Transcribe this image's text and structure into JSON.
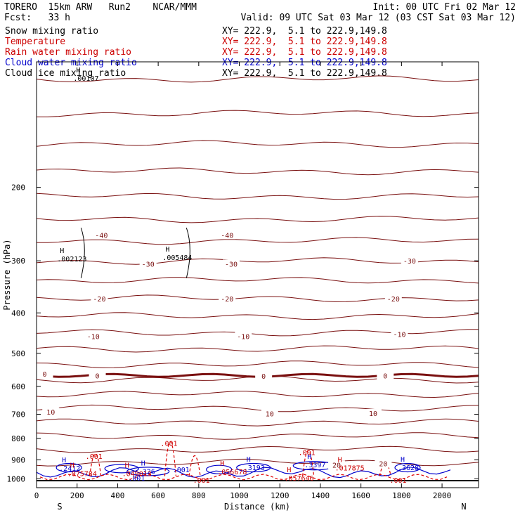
{
  "header": {
    "model": "TORERO  15km ARW   Run2    NCAR/MMM",
    "init": "Init: 00 UTC Fri 02 Mar 12",
    "fcst": "Fcst:   33 h",
    "valid": "Valid: 09 UTC Sat 03 Mar 12 (03 CST Sat 03 Mar 12)"
  },
  "fields": [
    {
      "name": "Snow mixing ratio",
      "xy": "XY= 222.9,  5.1 to 222.9,149.8",
      "color": "#000000"
    },
    {
      "name": "Temperature",
      "xy": "XY= 222.9,  5.1 to 222.9,149.8",
      "color": "#cc0000"
    },
    {
      "name": "Rain water mixing ratio",
      "xy": "XY= 222.9,  5.1 to 222.9,149.8",
      "color": "#cc0000"
    },
    {
      "name": "Cloud water mixing ratio",
      "xy": "XY= 222.9,  5.1 to 222.9,149.8",
      "color": "#0000cc"
    },
    {
      "name": "Cloud ice mixing ratio",
      "xy": "XY= 222.9,  5.1 to 222.9,149.8",
      "color": "#000000"
    }
  ],
  "chart_data": {
    "type": "contour",
    "xlabel": "Distance (km)",
    "ylabel": "Pressure (hPa)",
    "xlim": [
      0,
      2180
    ],
    "ylim": [
      1050,
      100
    ],
    "y_scale": "log",
    "x_ticks": [
      0,
      200,
      400,
      600,
      800,
      1000,
      1200,
      1400,
      1600,
      1800,
      2000
    ],
    "y_ticks": [
      200,
      300,
      400,
      500,
      600,
      700,
      800,
      900,
      1000
    ],
    "x_end_labels": {
      "left": "S",
      "right": "N"
    },
    "temperature_contour_labels": [
      {
        "value": "-40",
        "x": 320,
        "p": 260
      },
      {
        "value": "-40",
        "x": 940,
        "p": 260
      },
      {
        "value": "-30",
        "x": 550,
        "p": 305
      },
      {
        "value": "-30",
        "x": 960,
        "p": 305
      },
      {
        "value": "-30",
        "x": 1840,
        "p": 300
      },
      {
        "value": "-20",
        "x": 310,
        "p": 370
      },
      {
        "value": "-20",
        "x": 940,
        "p": 370
      },
      {
        "value": "-20",
        "x": 1760,
        "p": 370
      },
      {
        "value": "-10",
        "x": 280,
        "p": 455
      },
      {
        "value": "-10",
        "x": 1020,
        "p": 455
      },
      {
        "value": "-10",
        "x": 1790,
        "p": 450
      },
      {
        "value": "0",
        "x": 40,
        "p": 560
      },
      {
        "value": "0",
        "x": 300,
        "p": 565
      },
      {
        "value": "0",
        "x": 1120,
        "p": 567
      },
      {
        "value": "0",
        "x": 1720,
        "p": 566
      },
      {
        "value": "10",
        "x": 70,
        "p": 690
      },
      {
        "value": "10",
        "x": 1150,
        "p": 697
      },
      {
        "value": "10",
        "x": 1660,
        "p": 696
      },
      {
        "value": "20",
        "x": 1480,
        "p": 926
      },
      {
        "value": "20",
        "x": 1710,
        "p": 918
      }
    ],
    "maxima_labels": [
      {
        "field": "snow",
        "value": ".002123",
        "x": 150,
        "p": 295
      },
      {
        "field": "snow",
        "value": ".005484",
        "x": 670,
        "p": 293
      },
      {
        "field": "cloud_ice",
        "value": ".00107",
        "x": 230,
        "p": 109
      },
      {
        "field": "cloud_water",
        "value": ".2412",
        "x": 160,
        "p": 939
      },
      {
        "field": "cloud_water",
        "value": ".326",
        "x": 550,
        "p": 955
      },
      {
        "field": "cloud_water",
        "value": ".3193",
        "x": 1070,
        "p": 935
      },
      {
        "field": "cloud_water",
        "value": ".3397",
        "x": 1370,
        "p": 921
      },
      {
        "field": "cloud_water",
        "value": ".3628",
        "x": 1830,
        "p": 935
      },
      {
        "field": "cloud_water",
        "value": ".001",
        "x": 720,
        "p": 945
      },
      {
        "field": "cloud_water",
        "value": ".001",
        "x": 500,
        "p": 990
      },
      {
        "field": "rain",
        "value": ".075784",
        "x": 200,
        "p": 966
      },
      {
        "field": "rain",
        "value": ".049013",
        "x": 470,
        "p": 966
      },
      {
        "field": "rain",
        "value": ".056678",
        "x": 940,
        "p": 956
      },
      {
        "field": "rain",
        "value": ".057646",
        "x": 1270,
        "p": 990
      },
      {
        "field": "rain",
        "value": ".017875",
        "x": 1520,
        "p": 937
      },
      {
        "field": "rain",
        "value": ".001",
        "x": 290,
        "p": 878
      },
      {
        "field": "rain",
        "value": ".001",
        "x": 660,
        "p": 817
      },
      {
        "field": "rain",
        "value": ".001",
        "x": 1340,
        "p": 859
      },
      {
        "field": "rain",
        "value": ".001",
        "x": 820,
        "p": 1003
      },
      {
        "field": "rain",
        "value": ".001",
        "x": 1790,
        "p": 1003
      }
    ],
    "grid": false,
    "legend": "top-left"
  }
}
